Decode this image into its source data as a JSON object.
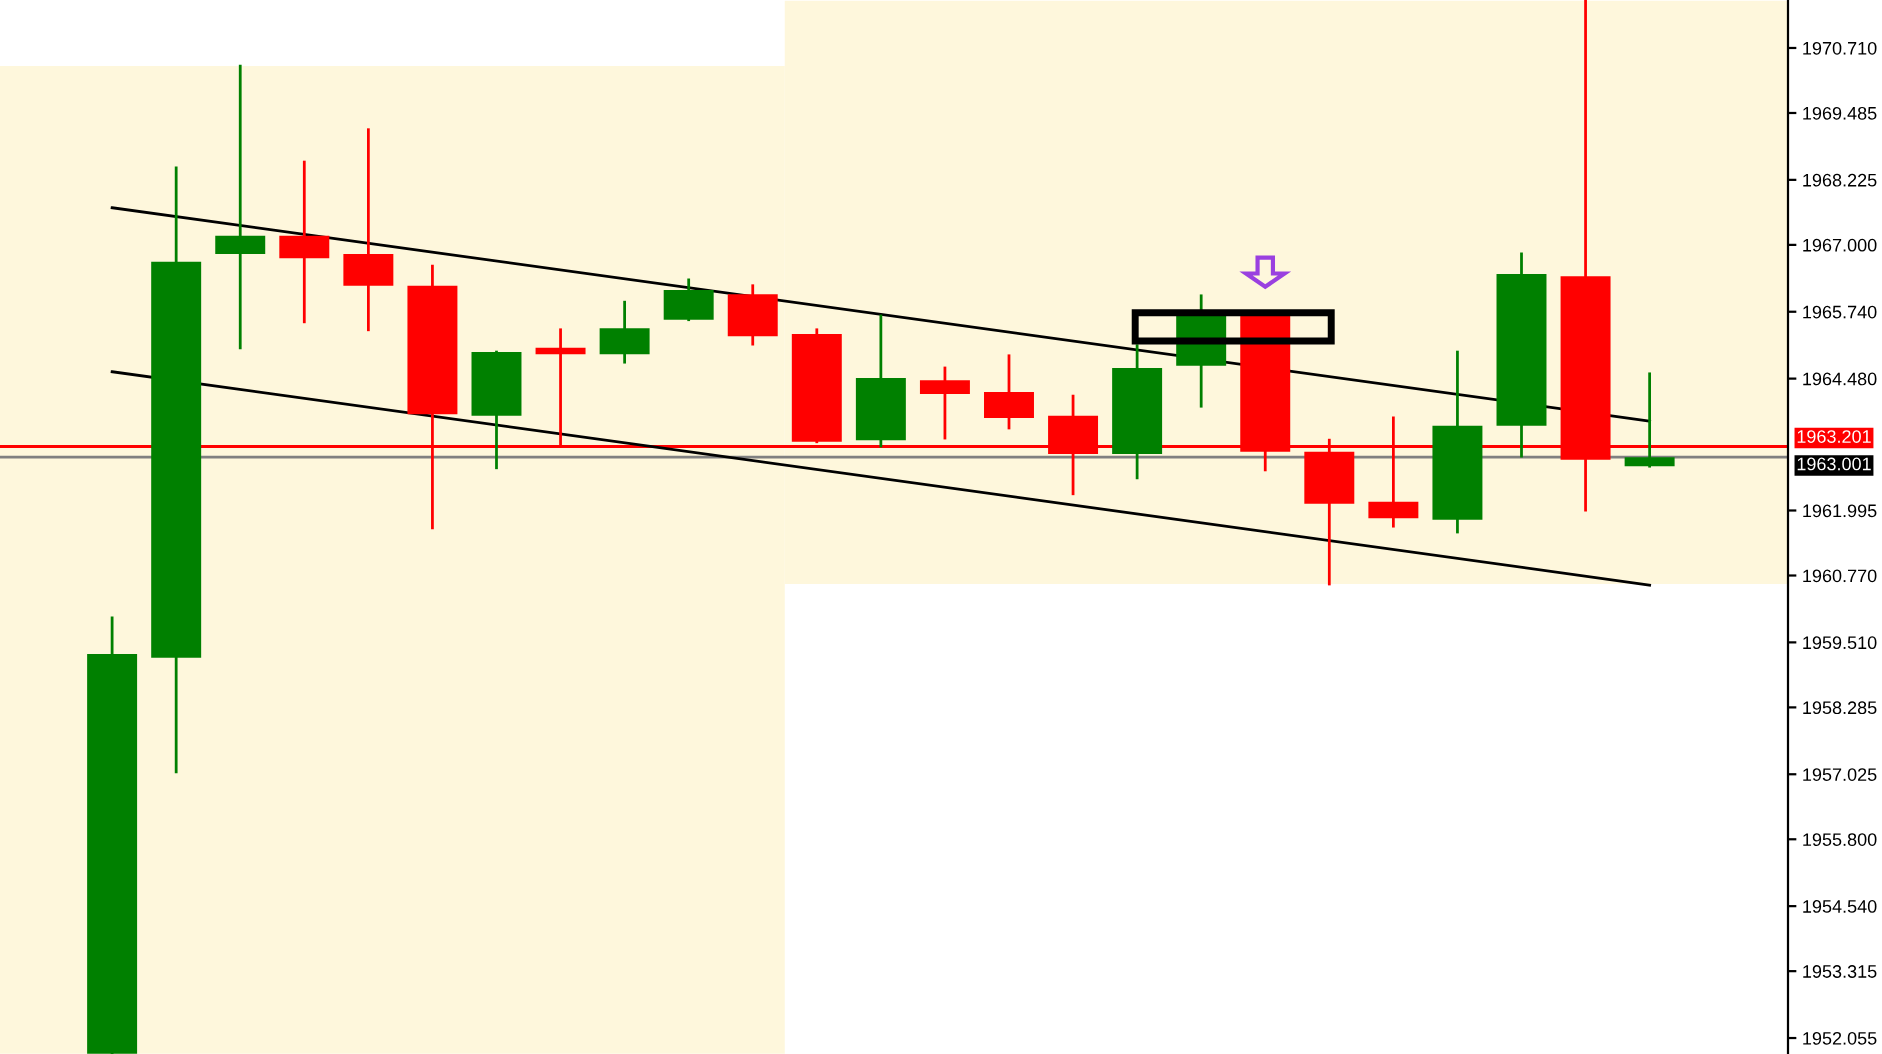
{
  "chart_data": {
    "type": "candlestick",
    "categories": [
      null,
      null,
      null,
      null,
      null,
      null,
      null,
      null,
      null,
      null,
      null,
      null,
      null,
      null,
      null,
      null,
      null,
      null,
      null,
      null,
      null,
      null,
      null,
      null,
      null
    ],
    "ohlc": [
      [
        1951.76,
        1959.97,
        1951.76,
        1959.29
      ],
      [
        1959.22,
        1968.45,
        1957.07,
        1966.68
      ],
      [
        1966.83,
        1970.37,
        1965.06,
        1967.17
      ],
      [
        1967.17,
        1968.56,
        1965.55,
        1966.75
      ],
      [
        1966.83,
        1969.17,
        1965.4,
        1966.23
      ],
      [
        1966.23,
        1966.6,
        1961.67,
        1963.81
      ],
      [
        1963.78,
        1964.98,
        1962.8,
        1964.98
      ],
      [
        1965.06,
        1965.4,
        1963.21,
        1964.94
      ],
      [
        1964.94,
        1965.92,
        1964.79,
        1965.43
      ],
      [
        1965.59,
        1966.34,
        1965.59,
        1966.15
      ],
      [
        1966.07,
        1966.23,
        1965.13,
        1965.28
      ],
      [
        1965.32,
        1965.4,
        1963.29,
        1963.29
      ],
      [
        1963.32,
        1965.66,
        1963.21,
        1964.49
      ],
      [
        1964.45,
        1964.68,
        1963.36,
        1964.19
      ],
      [
        1964.23,
        1964.91,
        1963.55,
        1963.74
      ],
      [
        1963.78,
        1964.15,
        1962.31,
        1963.06
      ],
      [
        1963.06,
        1965.1,
        1962.61,
        1964.68
      ],
      [
        1964.72,
        1966.04,
        1963.96,
        1965.66
      ],
      [
        1965.66,
        1965.66,
        1962.76,
        1963.1
      ],
      [
        1963.1,
        1963.32,
        1960.61,
        1962.12
      ],
      [
        1962.16,
        1963.74,
        1961.7,
        1961.85
      ],
      [
        1961.82,
        1964.98,
        1961.59,
        1963.59
      ],
      [
        1963.59,
        1966.83,
        1963.02,
        1966.45
      ],
      [
        1966.41,
        1971.6,
        1962.0,
        1962.95
      ],
      [
        1962.83,
        1964.57,
        1962.83,
        1963.0
      ]
    ],
    "colors": [
      "#008000",
      "#008000",
      "#008000",
      "#ff0000",
      "#ff0000",
      "#ff0000",
      "#008000",
      "#ff0000",
      "#008000",
      "#008000",
      "#ff0000",
      "#ff0000",
      "#008000",
      "#ff0000",
      "#ff0000",
      "#ff0000",
      "#008000",
      "#008000",
      "#ff0000",
      "#ff0000",
      "#ff0000",
      "#008000",
      "#008000",
      "#ff0000",
      "#008000"
    ],
    "series": [
      {
        "type": "line",
        "values": [
          1967.7,
          null,
          null,
          null,
          null,
          null,
          null,
          null,
          null,
          null,
          null,
          null,
          null,
          null,
          null,
          null,
          null,
          null,
          null,
          null,
          null,
          null,
          null,
          null,
          1963.68
        ],
        "color": "#000000"
      },
      {
        "type": "line",
        "values": [
          1964.61,
          null,
          null,
          null,
          null,
          null,
          null,
          null,
          null,
          null,
          null,
          null,
          null,
          null,
          null,
          null,
          null,
          null,
          null,
          null,
          null,
          null,
          null,
          null,
          1960.59
        ],
        "color": "#000000"
      }
    ],
    "ref_lines": [
      {
        "axis": "y",
        "value": 1963.201,
        "label": "1963.201",
        "color": "#ff0000"
      },
      {
        "axis": "y",
        "value": 1963.001,
        "label": "1963.001",
        "color": "#808080"
      }
    ],
    "ylim": [
      1951.754,
      1971.614
    ],
    "yticks": [
      {
        "value": 1970.71,
        "label": "1970.710"
      },
      {
        "value": 1969.485,
        "label": "1969.485"
      },
      {
        "value": 1968.225,
        "label": "1968.225"
      },
      {
        "value": 1967.0,
        "label": "1967.000"
      },
      {
        "value": 1965.74,
        "label": "1965.740"
      },
      {
        "value": 1964.48,
        "label": "1964.480"
      },
      {
        "value": 1961.995,
        "label": "1961.995"
      },
      {
        "value": 1960.77,
        "label": "1960.770"
      },
      {
        "value": 1959.51,
        "label": "1959.510"
      },
      {
        "value": 1958.285,
        "label": "1958.285"
      },
      {
        "value": 1957.025,
        "label": "1957.025"
      },
      {
        "value": 1955.8,
        "label": "1955.800"
      },
      {
        "value": 1954.54,
        "label": "1954.540"
      },
      {
        "value": 1953.315,
        "label": "1953.315"
      },
      {
        "value": 1952.055,
        "label": "1952.055"
      }
    ],
    "tick_labels": "y",
    "grid": false,
    "legend": false
  }
}
